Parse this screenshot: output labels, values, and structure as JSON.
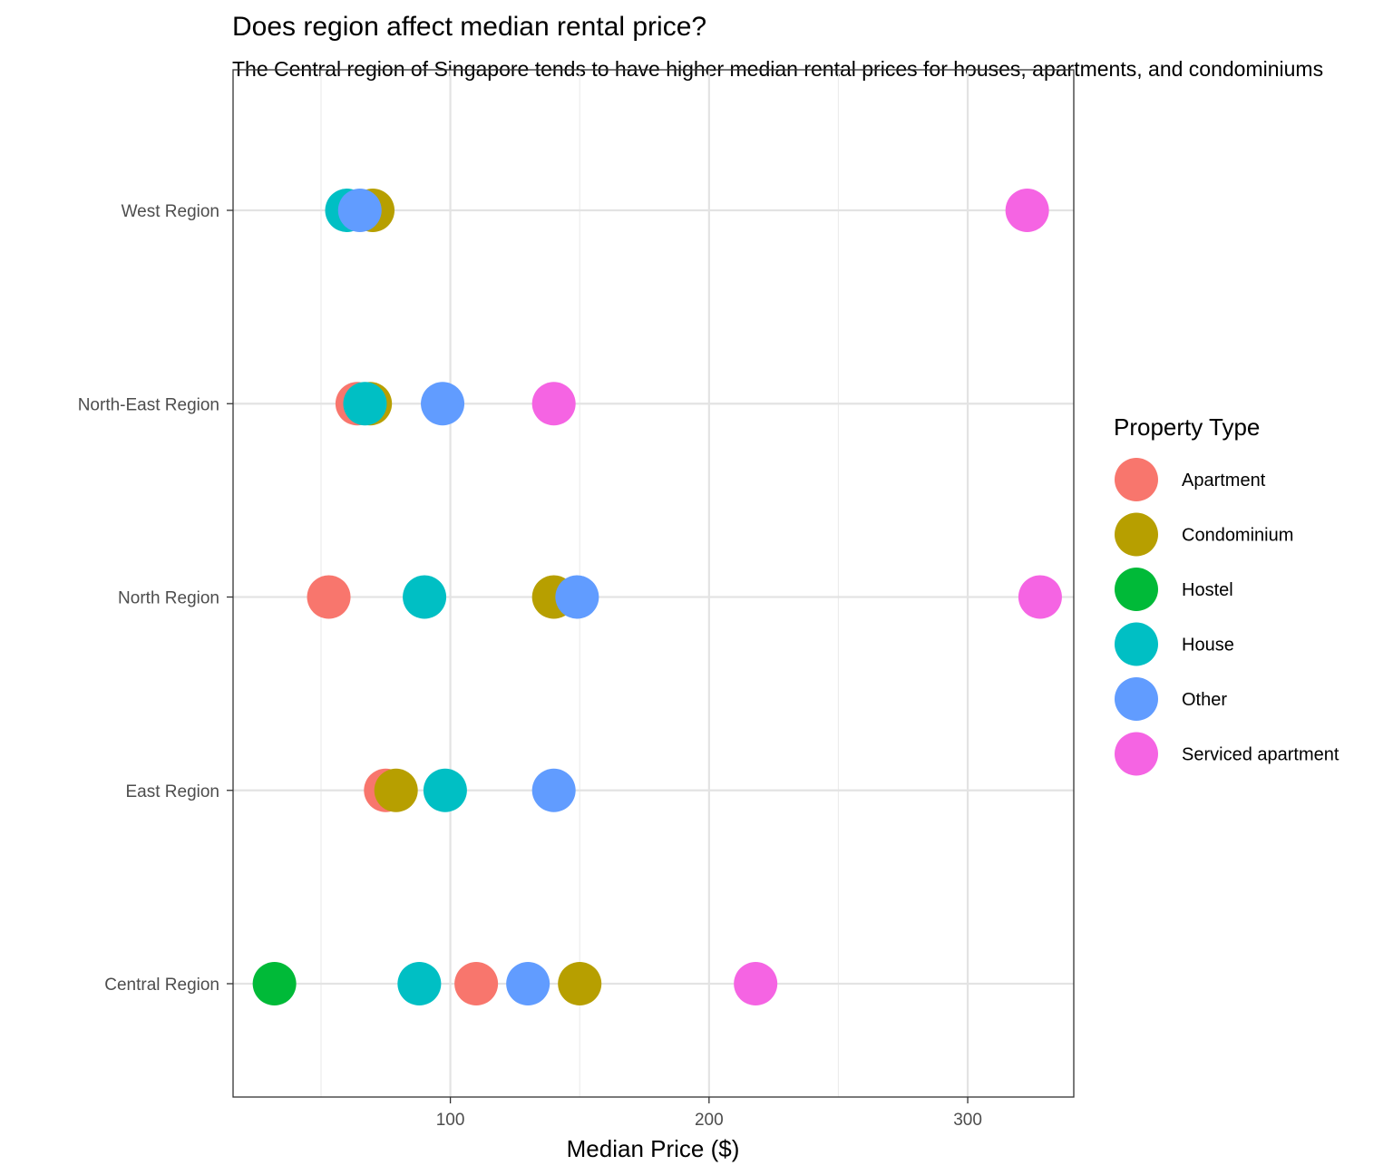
{
  "chart_data": {
    "type": "scatter",
    "title": "Does region affect median rental price?",
    "subtitle": "The Central region of Singapore tends to have higher median rental prices for houses, apartments, and condominiums",
    "xlabel": "Median Price ($)",
    "ylabel": "",
    "xlim": [
      16,
      341
    ],
    "x_ticks": [
      100,
      200,
      300
    ],
    "categories": [
      "Central Region",
      "East Region",
      "North Region",
      "North-East Region",
      "West Region"
    ],
    "grid": true,
    "legend": {
      "title": "Property Type",
      "position": "right"
    },
    "series": [
      {
        "name": "Apartment",
        "color": "#F8766D",
        "points": [
          {
            "region": "Central Region",
            "x": 110
          },
          {
            "region": "East Region",
            "x": 75
          },
          {
            "region": "North Region",
            "x": 53
          },
          {
            "region": "North-East Region",
            "x": 64
          }
        ]
      },
      {
        "name": "Condominium",
        "color": "#B79F00",
        "points": [
          {
            "region": "Central Region",
            "x": 150
          },
          {
            "region": "East Region",
            "x": 79
          },
          {
            "region": "North Region",
            "x": 140
          },
          {
            "region": "North-East Region",
            "x": 69
          },
          {
            "region": "West Region",
            "x": 70
          }
        ]
      },
      {
        "name": "Hostel",
        "color": "#00BA38",
        "points": [
          {
            "region": "Central Region",
            "x": 32
          }
        ]
      },
      {
        "name": "House",
        "color": "#00BFC4",
        "points": [
          {
            "region": "Central Region",
            "x": 88
          },
          {
            "region": "East Region",
            "x": 98
          },
          {
            "region": "North Region",
            "x": 90
          },
          {
            "region": "North-East Region",
            "x": 67
          },
          {
            "region": "West Region",
            "x": 60
          }
        ]
      },
      {
        "name": "Other",
        "color": "#619CFF",
        "points": [
          {
            "region": "Central Region",
            "x": 130
          },
          {
            "region": "East Region",
            "x": 140
          },
          {
            "region": "North Region",
            "x": 149
          },
          {
            "region": "North-East Region",
            "x": 97
          },
          {
            "region": "West Region",
            "x": 65
          }
        ]
      },
      {
        "name": "Serviced apartment",
        "color": "#F564E3",
        "points": [
          {
            "region": "Central Region",
            "x": 218
          },
          {
            "region": "North Region",
            "x": 328
          },
          {
            "region": "North-East Region",
            "x": 140
          },
          {
            "region": "West Region",
            "x": 323
          }
        ]
      }
    ]
  }
}
